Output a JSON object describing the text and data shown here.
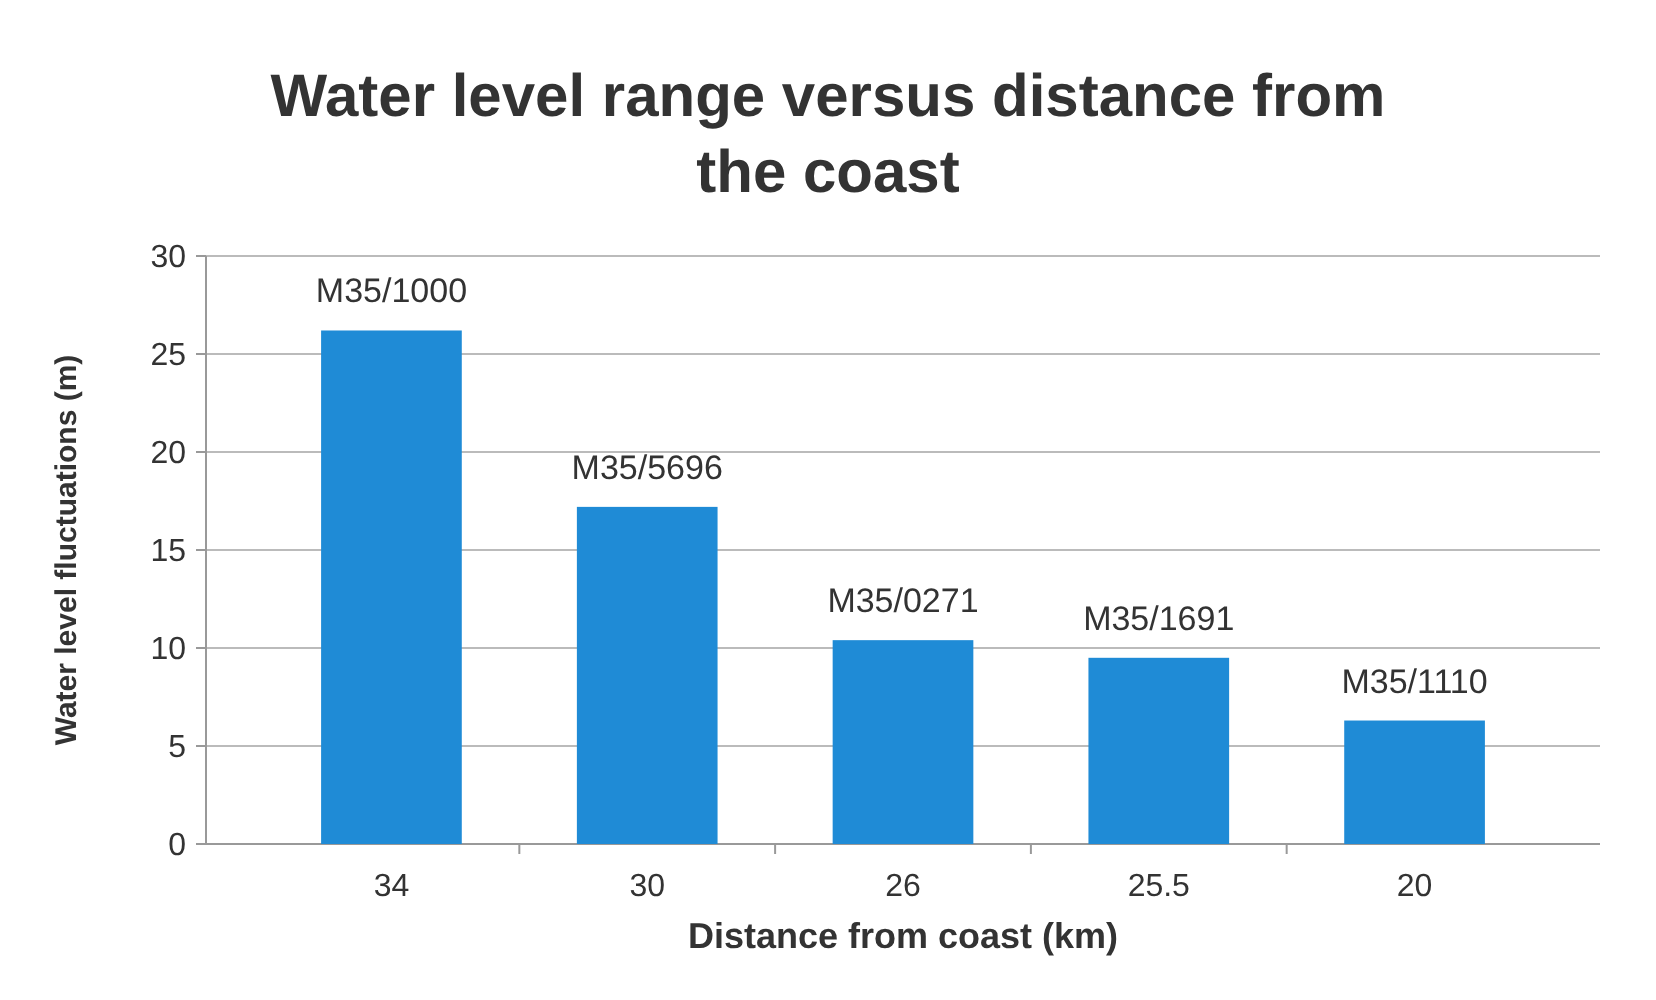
{
  "chart_data": {
    "type": "bar",
    "title": "Water level range versus distance from the coast",
    "xlabel": "Distance from coast (km)",
    "ylabel": "Water level fluctuations (m)",
    "categories": [
      "34",
      "30",
      "26",
      "25.5",
      "20"
    ],
    "values": [
      26.2,
      17.2,
      10.4,
      9.5,
      6.3
    ],
    "color": "#1f8bd6",
    "ylim": [
      0,
      30
    ],
    "yticks": [
      0,
      5,
      10,
      15,
      20,
      25,
      30
    ],
    "grid": "y",
    "annotations": [
      {
        "text": "M35/1000",
        "x": "34",
        "y": 26.2
      },
      {
        "text": "M35/5696",
        "x": "30",
        "y": 17.2
      },
      {
        "text": "M35/0271",
        "x": "26",
        "y": 10.4
      },
      {
        "text": "M35/1691",
        "x": "25.5",
        "y": 9.5
      },
      {
        "text": "M35/1110",
        "x": "20",
        "y": 6.3
      }
    ]
  }
}
